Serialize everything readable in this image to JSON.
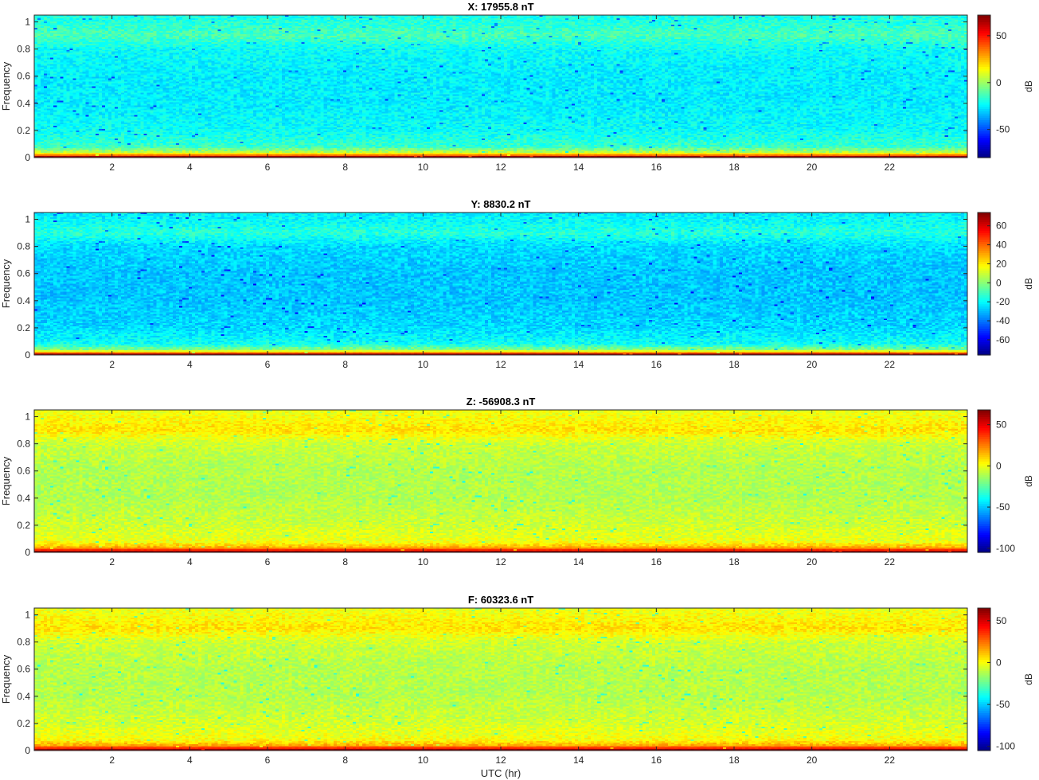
{
  "chart_data": [
    {
      "type": "heatmap",
      "title": "X: 17955.8 nT",
      "ylabel": "Frequency",
      "xlabel": "",
      "xlim": [
        0,
        24
      ],
      "ylim": [
        0,
        1.05
      ],
      "xticks": [
        "2",
        "4",
        "6",
        "8",
        "10",
        "12",
        "14",
        "16",
        "18",
        "20",
        "22"
      ],
      "yticks": [
        "0",
        "0.2",
        "0.4",
        "0.6",
        "0.8",
        "1"
      ],
      "colorbar": {
        "label": "dB",
        "range": [
          -80,
          72
        ],
        "ticks": [
          "50",
          "0",
          "-50"
        ],
        "tick_values": [
          50,
          0,
          -50
        ]
      },
      "rows": [
        {
          "freq": 0.005,
          "db": 70
        },
        {
          "freq": 0.02,
          "db": 30
        },
        {
          "freq": 0.04,
          "db": 5
        },
        {
          "freq": 0.08,
          "db": -15
        },
        {
          "freq": 0.2,
          "db": -22
        },
        {
          "freq": 0.4,
          "db": -25
        },
        {
          "freq": 0.6,
          "db": -25
        },
        {
          "freq": 0.8,
          "db": -22
        },
        {
          "freq": 0.9,
          "db": -12
        },
        {
          "freq": 1.0,
          "db": -18
        },
        {
          "freq": 1.05,
          "db": -20
        }
      ]
    },
    {
      "type": "heatmap",
      "title": "Y: 8830.2 nT",
      "ylabel": "Frequency",
      "xlabel": "",
      "xlim": [
        0,
        24
      ],
      "ylim": [
        0,
        1.05
      ],
      "xticks": [
        "2",
        "4",
        "6",
        "8",
        "10",
        "12",
        "14",
        "16",
        "18",
        "20",
        "22"
      ],
      "yticks": [
        "0",
        "0.2",
        "0.4",
        "0.6",
        "0.8",
        "1"
      ],
      "colorbar": {
        "label": "dB",
        "range": [
          -76,
          74
        ],
        "ticks": [
          "60",
          "40",
          "20",
          "0",
          "-20",
          "-40",
          "-60"
        ],
        "tick_values": [
          60,
          40,
          20,
          0,
          -20,
          -40,
          -60
        ]
      },
      "rows": [
        {
          "freq": 0.005,
          "db": 70
        },
        {
          "freq": 0.02,
          "db": 25
        },
        {
          "freq": 0.04,
          "db": 0
        },
        {
          "freq": 0.08,
          "db": -18
        },
        {
          "freq": 0.2,
          "db": -25
        },
        {
          "freq": 0.4,
          "db": -28
        },
        {
          "freq": 0.6,
          "db": -28
        },
        {
          "freq": 0.8,
          "db": -25
        },
        {
          "freq": 0.9,
          "db": -14
        },
        {
          "freq": 1.0,
          "db": -20
        },
        {
          "freq": 1.05,
          "db": -22
        }
      ]
    },
    {
      "type": "heatmap",
      "title": "Z: -56908.3 nT",
      "ylabel": "Frequency",
      "xlabel": "",
      "xlim": [
        0,
        24
      ],
      "ylim": [
        0,
        1.05
      ],
      "xticks": [
        "2",
        "4",
        "6",
        "8",
        "10",
        "12",
        "14",
        "16",
        "18",
        "20",
        "22"
      ],
      "yticks": [
        "0",
        "0.2",
        "0.4",
        "0.6",
        "0.8",
        "1"
      ],
      "colorbar": {
        "label": "dB",
        "range": [
          -105,
          68
        ],
        "ticks": [
          "50",
          "0",
          "-50",
          "-100"
        ],
        "tick_values": [
          50,
          0,
          -50,
          -100
        ]
      },
      "rows": [
        {
          "freq": 0.005,
          "db": 65
        },
        {
          "freq": 0.02,
          "db": 35
        },
        {
          "freq": 0.04,
          "db": 15
        },
        {
          "freq": 0.08,
          "db": 0
        },
        {
          "freq": 0.2,
          "db": -5
        },
        {
          "freq": 0.4,
          "db": -10
        },
        {
          "freq": 0.6,
          "db": -10
        },
        {
          "freq": 0.8,
          "db": -6
        },
        {
          "freq": 0.9,
          "db": 8
        },
        {
          "freq": 1.0,
          "db": 2
        },
        {
          "freq": 1.05,
          "db": 0
        }
      ]
    },
    {
      "type": "heatmap",
      "title": "F: 60323.6 nT",
      "ylabel": "Frequency",
      "xlabel": "UTC (hr)",
      "xlim": [
        0,
        24
      ],
      "ylim": [
        0,
        1.05
      ],
      "xticks": [
        "2",
        "4",
        "6",
        "8",
        "10",
        "12",
        "14",
        "16",
        "18",
        "20",
        "22"
      ],
      "yticks": [
        "0",
        "0.2",
        "0.4",
        "0.6",
        "0.8",
        "1"
      ],
      "colorbar": {
        "label": "dB",
        "range": [
          -105,
          65
        ],
        "ticks": [
          "50",
          "0",
          "-50",
          "-100"
        ],
        "tick_values": [
          50,
          0,
          -50,
          -100
        ]
      },
      "rows": [
        {
          "freq": 0.005,
          "db": 63
        },
        {
          "freq": 0.02,
          "db": 33
        },
        {
          "freq": 0.04,
          "db": 14
        },
        {
          "freq": 0.08,
          "db": 0
        },
        {
          "freq": 0.2,
          "db": -6
        },
        {
          "freq": 0.4,
          "db": -11
        },
        {
          "freq": 0.6,
          "db": -11
        },
        {
          "freq": 0.8,
          "db": -7
        },
        {
          "freq": 0.9,
          "db": 6
        },
        {
          "freq": 1.0,
          "db": 0
        },
        {
          "freq": 1.05,
          "db": -2
        }
      ]
    }
  ]
}
